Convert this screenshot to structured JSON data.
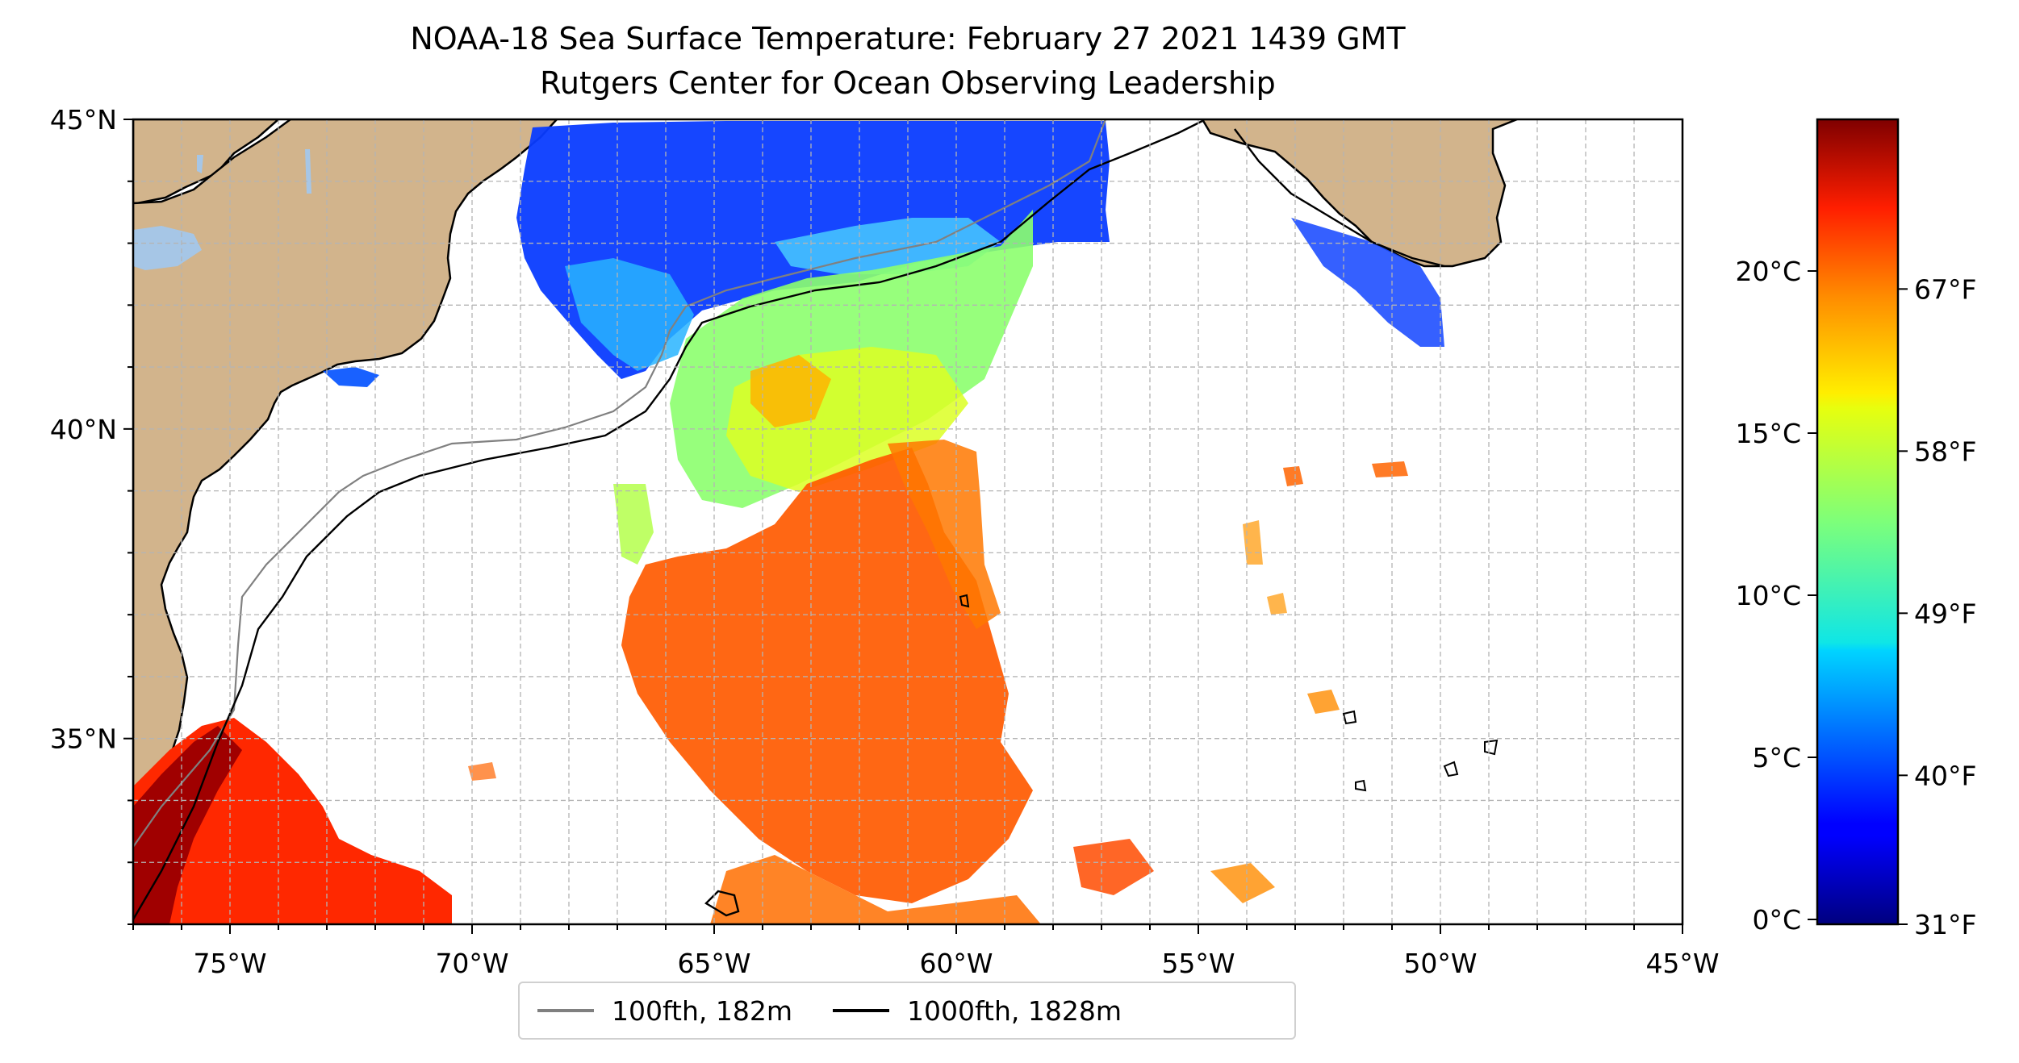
{
  "title": {
    "line1": "NOAA-18 Sea Surface Temperature: February 27 2021 1439 GMT",
    "line2": "Rutgers Center for Ocean Observing Leadership"
  },
  "map": {
    "lon_range": [
      -77,
      -45
    ],
    "lat_range": [
      32,
      45
    ],
    "lon_ticks": [
      {
        "value": -75,
        "label": "75°W"
      },
      {
        "value": -70,
        "label": "70°W"
      },
      {
        "value": -65,
        "label": "65°W"
      },
      {
        "value": -60,
        "label": "60°W"
      },
      {
        "value": -55,
        "label": "55°W"
      },
      {
        "value": -50,
        "label": "50°W"
      },
      {
        "value": -45,
        "label": "45°W"
      }
    ],
    "lat_ticks": [
      {
        "value": 45,
        "label": "45°N"
      },
      {
        "value": 40,
        "label": "40°N"
      },
      {
        "value": 35,
        "label": "35°N"
      }
    ],
    "grid": true,
    "colors": {
      "land": "#d2b48c",
      "lakes": "#a6c6e6",
      "isobath_100": "#808080",
      "isobath_1000": "#000000"
    }
  },
  "legend": {
    "items": [
      {
        "label": "100fth, 182m",
        "color": "#808080"
      },
      {
        "label": "1000fth, 1828m",
        "color": "#000000"
      }
    ]
  },
  "colorbar": {
    "cmap": "jet",
    "celsius_ticks": [
      {
        "value": 0,
        "label": "0°C"
      },
      {
        "value": 5,
        "label": "5°C"
      },
      {
        "value": 10,
        "label": "10°C"
      },
      {
        "value": 15,
        "label": "15°C"
      },
      {
        "value": 20,
        "label": "20°C"
      }
    ],
    "fahrenheit_ticks": [
      {
        "value": 31,
        "label": "31°F"
      },
      {
        "value": 40,
        "label": "40°F"
      },
      {
        "value": 49,
        "label": "49°F"
      },
      {
        "value": 58,
        "label": "58°F"
      },
      {
        "value": 67,
        "label": "67°F"
      }
    ]
  }
}
